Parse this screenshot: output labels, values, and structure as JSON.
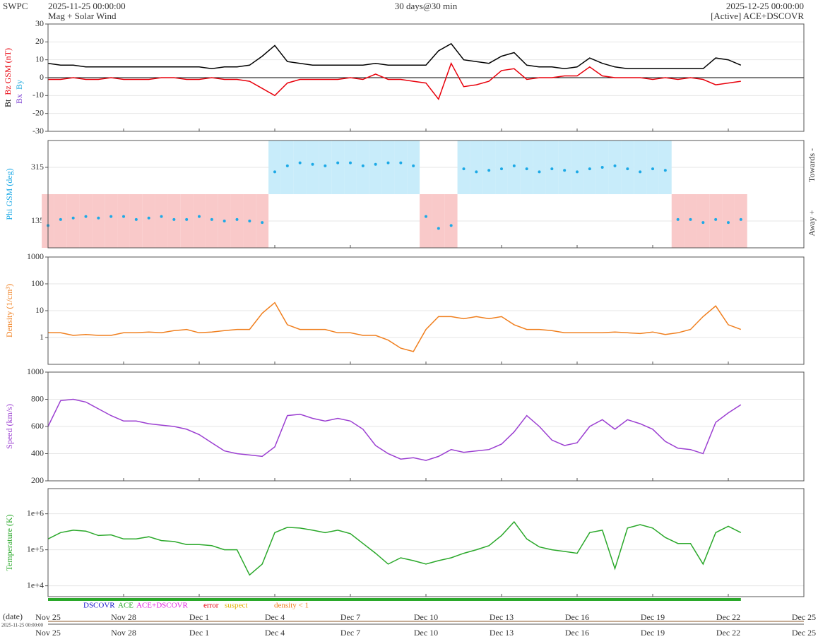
{
  "chart_data": {
    "type": "panels",
    "org": "SWPC",
    "subtitle": "Mag + Solar Wind",
    "span": "30 days@30 min",
    "status": "[Active] ACE+DSCOVR",
    "x_label": "(date)",
    "xlim": [
      "2025-11-25 00:00:00",
      "2025-12-25 00:00:00"
    ],
    "xticks": [
      {
        "value": "2025-11-25",
        "label": "Nov 25"
      },
      {
        "value": "2025-11-28",
        "label": "Nov 28"
      },
      {
        "value": "2025-12-01",
        "label": "Dec 1"
      },
      {
        "value": "2025-12-04",
        "label": "Dec 4"
      },
      {
        "value": "2025-12-07",
        "label": "Dec 7"
      },
      {
        "value": "2025-12-10",
        "label": "Dec 10"
      },
      {
        "value": "2025-12-13",
        "label": "Dec 13"
      },
      {
        "value": "2025-12-16",
        "label": "Dec 16"
      },
      {
        "value": "2025-12-19",
        "label": "Dec 19"
      },
      {
        "value": "2025-12-22",
        "label": "Dec 22"
      },
      {
        "value": "2025-12-25",
        "label": "Dec 25"
      }
    ],
    "x": [
      "2025-11-25 00:00",
      "2025-11-25 12:00",
      "2025-11-26 00:00",
      "2025-11-26 12:00",
      "2025-11-27 00:00",
      "2025-11-27 12:00",
      "2025-11-28 00:00",
      "2025-11-28 12:00",
      "2025-11-29 00:00",
      "2025-11-29 12:00",
      "2025-11-30 00:00",
      "2025-11-30 12:00",
      "2025-12-01 00:00",
      "2025-12-01 12:00",
      "2025-12-02 00:00",
      "2025-12-02 12:00",
      "2025-12-03 00:00",
      "2025-12-03 12:00",
      "2025-12-04 00:00",
      "2025-12-04 12:00",
      "2025-12-05 00:00",
      "2025-12-05 12:00",
      "2025-12-06 00:00",
      "2025-12-06 12:00",
      "2025-12-07 00:00",
      "2025-12-07 12:00",
      "2025-12-08 00:00",
      "2025-12-08 12:00",
      "2025-12-09 00:00",
      "2025-12-09 12:00",
      "2025-12-10 00:00",
      "2025-12-10 12:00",
      "2025-12-11 00:00",
      "2025-12-11 12:00",
      "2025-12-12 00:00",
      "2025-12-12 12:00",
      "2025-12-13 00:00",
      "2025-12-13 12:00",
      "2025-12-14 00:00",
      "2025-12-14 12:00",
      "2025-12-15 00:00",
      "2025-12-15 12:00",
      "2025-12-16 00:00",
      "2025-12-16 12:00",
      "2025-12-17 00:00",
      "2025-12-17 12:00",
      "2025-12-18 00:00",
      "2025-12-18 12:00",
      "2025-12-19 00:00",
      "2025-12-19 12:00",
      "2025-12-20 00:00",
      "2025-12-20 12:00",
      "2025-12-21 00:00",
      "2025-12-21 12:00",
      "2025-12-22 00:00",
      "2025-12-22 12:00"
    ],
    "panels": [
      {
        "type": "line",
        "ylim": [
          -30,
          30
        ],
        "yticks": [
          -30,
          -20,
          -10,
          0,
          10,
          20,
          30
        ],
        "zero_line": true,
        "series": [
          {
            "name": "Bt",
            "color": "#000000",
            "values": [
              8,
              7,
              7,
              6,
              6,
              6,
              6,
              6,
              6,
              6,
              6,
              6,
              6,
              5,
              6,
              6,
              7,
              12,
              18,
              9,
              8,
              7,
              7,
              7,
              7,
              7,
              8,
              7,
              7,
              7,
              7,
              15,
              19,
              10,
              9,
              8,
              12,
              14,
              7,
              6,
              6,
              5,
              6,
              11,
              8,
              6,
              5,
              5,
              5,
              5,
              5,
              5,
              5,
              11,
              10,
              7
            ]
          },
          {
            "name": "Bz GSM (nT)",
            "color": "#e8000b",
            "values": [
              -1,
              -1,
              0,
              -1,
              -1,
              0,
              -1,
              -1,
              -1,
              0,
              0,
              -1,
              -1,
              0,
              -1,
              -1,
              -2,
              -6,
              -10,
              -3,
              -1,
              -1,
              -1,
              -1,
              0,
              -1,
              2,
              -1,
              -1,
              -2,
              -3,
              -12,
              8,
              -5,
              -4,
              -2,
              4,
              5,
              -1,
              0,
              0,
              1,
              1,
              6,
              1,
              0,
              0,
              0,
              -1,
              0,
              -1,
              0,
              -1,
              -4,
              -3,
              -2
            ]
          }
        ],
        "extra_labels": [
          {
            "text": "Bx",
            "color": "#7b3fd1"
          },
          {
            "text": "By",
            "color": "#22aadd"
          }
        ]
      },
      {
        "type": "phi",
        "ylabel": "Phi GSM (deg)",
        "label_color": "#1ca9e6",
        "ylim": [
          45,
          405
        ],
        "yticks": [
          135,
          315
        ],
        "color": "#1ca9e6",
        "towards_color": "#c8ecfa",
        "away_color": "#f9c9c9",
        "side_labels": [
          "Towards -",
          "Away +"
        ],
        "values": [
          120,
          140,
          145,
          150,
          145,
          150,
          150,
          140,
          145,
          150,
          140,
          140,
          150,
          140,
          135,
          140,
          135,
          130,
          300,
          320,
          330,
          325,
          320,
          330,
          330,
          320,
          325,
          330,
          330,
          320,
          150,
          110,
          120,
          310,
          300,
          305,
          310,
          320,
          310,
          300,
          310,
          305,
          300,
          310,
          315,
          320,
          310,
          300,
          310,
          305,
          140,
          140,
          130,
          140,
          130,
          140
        ]
      },
      {
        "type": "line",
        "log": true,
        "ylabel": "Density (1/cm³)",
        "label_color": "#f07f1e",
        "ylim": [
          0.1,
          1000
        ],
        "yticks": [
          1,
          10,
          100,
          1000
        ],
        "series": [
          {
            "color": "#f07f1e",
            "values": [
              1.5,
              1.5,
              1.2,
              1.3,
              1.2,
              1.2,
              1.5,
              1.5,
              1.6,
              1.5,
              1.8,
              2,
              1.5,
              1.6,
              1.8,
              2,
              2,
              8,
              20,
              3,
              2,
              2,
              2,
              1.5,
              1.5,
              1.2,
              1.2,
              0.8,
              0.4,
              0.3,
              2,
              6,
              6,
              5,
              6,
              5,
              6,
              3,
              2,
              2,
              1.8,
              1.5,
              1.5,
              1.5,
              1.5,
              1.6,
              1.5,
              1.4,
              1.6,
              1.3,
              1.5,
              2,
              6,
              15,
              3,
              2
            ]
          }
        ]
      },
      {
        "type": "line",
        "ylabel": "Speed (km/s)",
        "label_color": "#9b3fd1",
        "ylim": [
          200,
          1000
        ],
        "yticks": [
          200,
          400,
          600,
          800,
          1000
        ],
        "series": [
          {
            "color": "#9b3fd1",
            "values": [
              600,
              790,
              800,
              780,
              730,
              680,
              640,
              640,
              620,
              610,
              600,
              580,
              540,
              480,
              420,
              400,
              390,
              380,
              450,
              680,
              690,
              660,
              640,
              660,
              640,
              580,
              460,
              400,
              360,
              370,
              350,
              380,
              430,
              410,
              420,
              430,
              470,
              560,
              680,
              600,
              500,
              460,
              480,
              600,
              650,
              580,
              650,
              620,
              580,
              490,
              440,
              430,
              400,
              630,
              700,
              760
            ]
          }
        ]
      },
      {
        "type": "line",
        "log": true,
        "ylabel": "Temperature (K)",
        "label_color": "#2aa82a",
        "ylim": [
          5000,
          5000000
        ],
        "yticks": [
          {
            "value": 10000,
            "label": "1e+4"
          },
          {
            "value": 100000,
            "label": "1e+5"
          },
          {
            "value": 1000000,
            "label": "1e+6"
          }
        ],
        "series": [
          {
            "color": "#2aa82a",
            "values": [
              200000,
              300000,
              350000,
              330000,
              250000,
              260000,
              200000,
              200000,
              230000,
              180000,
              170000,
              140000,
              140000,
              130000,
              100000,
              100000,
              20000,
              40000,
              300000,
              420000,
              400000,
              350000,
              300000,
              350000,
              280000,
              150000,
              80000,
              40000,
              60000,
              50000,
              40000,
              50000,
              60000,
              80000,
              100000,
              130000,
              250000,
              600000,
              200000,
              120000,
              100000,
              90000,
              80000,
              300000,
              350000,
              30000,
              400000,
              500000,
              400000,
              220000,
              150000,
              150000,
              40000,
              300000,
              450000,
              300000
            ]
          }
        ]
      }
    ],
    "status_legend": [
      {
        "name": "DSCOVR",
        "color": "#1a1acc"
      },
      {
        "name": "ACE",
        "color": "#2aa82a"
      },
      {
        "name": "ACE+DSCOVR",
        "color": "#e020e0"
      },
      {
        "name": "error",
        "color": "#e8000b"
      },
      {
        "name": "suspect",
        "color": "#e0b000"
      },
      {
        "name": "density < 1",
        "color": "#f07f1e"
      }
    ]
  }
}
